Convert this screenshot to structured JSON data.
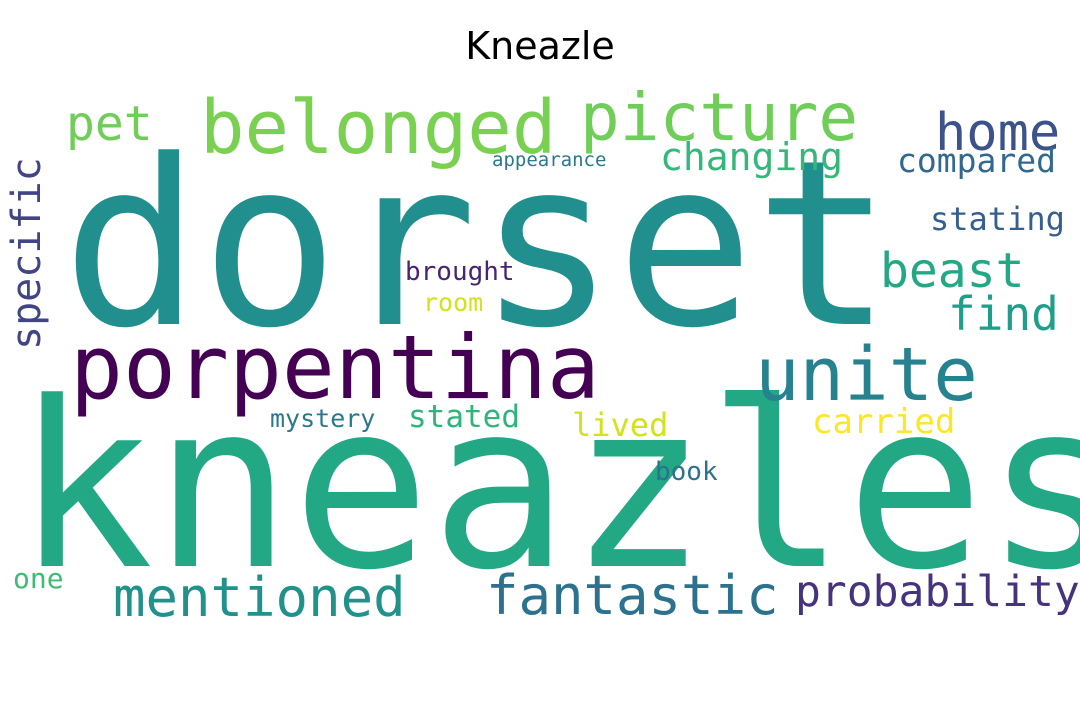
{
  "title": "Kneazle",
  "words": [
    {
      "text": "dorset",
      "color": "#218f8d"
    },
    {
      "text": "kneazles",
      "color": "#22a884"
    },
    {
      "text": "porpentina",
      "color": "#440154"
    },
    {
      "text": "belonged",
      "color": "#7ad151"
    },
    {
      "text": "picture",
      "color": "#6ece58"
    },
    {
      "text": "unite",
      "color": "#26828e"
    },
    {
      "text": "home",
      "color": "#3b528b"
    },
    {
      "text": "pet",
      "color": "#6ece58"
    },
    {
      "text": "changing",
      "color": "#35b779"
    },
    {
      "text": "appearance",
      "color": "#2a788e"
    },
    {
      "text": "compared",
      "color": "#31688e"
    },
    {
      "text": "specific",
      "color": "#414487"
    },
    {
      "text": "stating",
      "color": "#355f8d"
    },
    {
      "text": "beast",
      "color": "#22a884"
    },
    {
      "text": "find",
      "color": "#1f9e89"
    },
    {
      "text": "brought",
      "color": "#482475"
    },
    {
      "text": "room",
      "color": "#d2e21b"
    },
    {
      "text": "mystery",
      "color": "#2a788e"
    },
    {
      "text": "stated",
      "color": "#2fb47c"
    },
    {
      "text": "lived",
      "color": "#d2e21b"
    },
    {
      "text": "carried",
      "color": "#fde725"
    },
    {
      "text": "book",
      "color": "#2c728e"
    },
    {
      "text": "one",
      "color": "#3fbc73"
    },
    {
      "text": "mentioned",
      "color": "#21918c"
    },
    {
      "text": "fantastic",
      "color": "#2c728e"
    },
    {
      "text": "probability",
      "color": "#46337e"
    }
  ]
}
